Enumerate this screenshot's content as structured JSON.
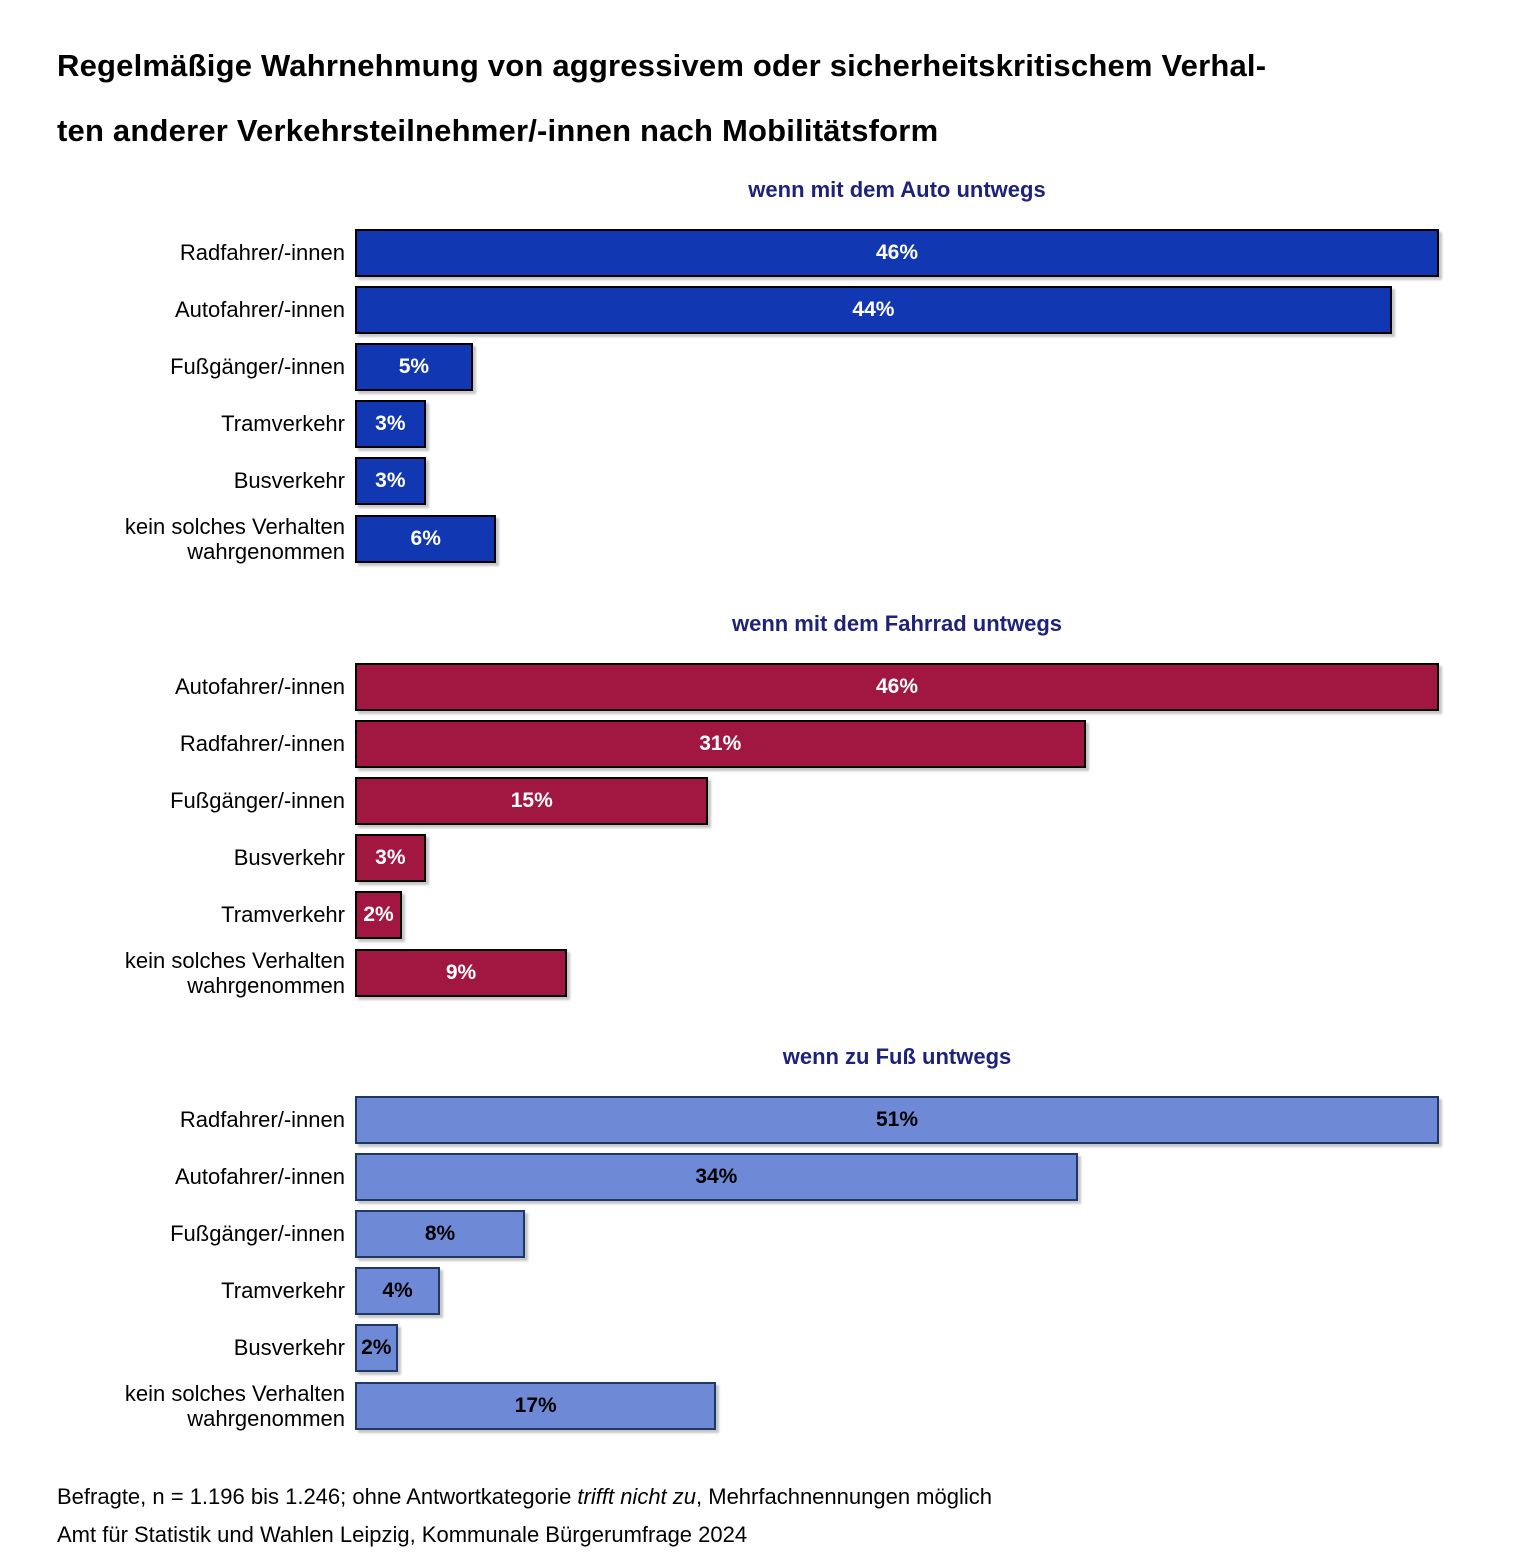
{
  "title": {
    "line1": "Regelmäßige Wahrnehmung von aggressivem oder sicherheitskritischem Verhal-",
    "line2": "ten anderer Verkehrsteilnehmer/-innen nach Mobilitätsform"
  },
  "chart_data": [
    {
      "type": "bar",
      "orientation": "horizontal",
      "title": "wenn mit dem Auto untwegs",
      "categories": [
        "Radfahrer/-innen",
        "Autofahrer/-innen",
        "Fußgänger/-innen",
        "Tramverkehr",
        "Busverkehr",
        "kein solches Verhalten wahrgenommen"
      ],
      "values": [
        46,
        44,
        5,
        3,
        3,
        6
      ],
      "value_labels": [
        "46%",
        "44%",
        "5%",
        "3%",
        "3%",
        "6%"
      ],
      "xlim": [
        0,
        46
      ],
      "grid": false,
      "bar_color": "#1137b2",
      "bar_border_color": "#000000",
      "value_label_color": "#ffffff"
    },
    {
      "type": "bar",
      "orientation": "horizontal",
      "title": "wenn mit dem Fahrrad untwegs",
      "categories": [
        "Autofahrer/-innen",
        "Radfahrer/-innen",
        "Fußgänger/-innen",
        "Busverkehr",
        "Tramverkehr",
        "kein solches Verhalten wahrgenommen"
      ],
      "values": [
        46,
        31,
        15,
        3,
        2,
        9
      ],
      "value_labels": [
        "46%",
        "31%",
        "15%",
        "3%",
        "2%",
        "9%"
      ],
      "xlim": [
        0,
        46
      ],
      "grid": false,
      "bar_color": "#a21742",
      "bar_border_color": "#000000",
      "value_label_color": "#ffffff"
    },
    {
      "type": "bar",
      "orientation": "horizontal",
      "title": "wenn zu Fuß untwegs",
      "categories": [
        "Radfahrer/-innen",
        "Autofahrer/-innen",
        "Fußgänger/-innen",
        "Tramverkehr",
        "Busverkehr",
        "kein solches Verhalten wahrgenommen"
      ],
      "values": [
        51,
        34,
        8,
        4,
        2,
        17
      ],
      "value_labels": [
        "51%",
        "34%",
        "8%",
        "4%",
        "2%",
        "17%"
      ],
      "xlim": [
        0,
        51
      ],
      "grid": false,
      "bar_color": "#6e8ad6",
      "bar_border_color": "#1f3864",
      "value_label_color": "#000000"
    }
  ],
  "footer": {
    "line1_pre": "Befragte, n = 1.196 bis 1.246; ohne Antwortkategorie ",
    "line1_italic": "trifft nicht zu",
    "line1_post": ", Mehrfachnennungen möglich",
    "line2": "Amt für Statistik und Wahlen Leipzig, Kommunale Bürgerumfrage 2024"
  }
}
